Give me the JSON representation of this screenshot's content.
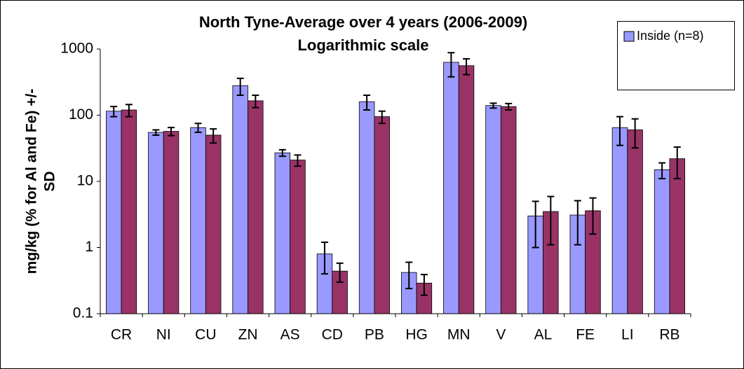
{
  "chart_data": {
    "type": "bar",
    "title": "North Tyne-Average over 4 years (2006-2009)",
    "subtitle": "Logarithmic scale",
    "y_label": [
      "mg/kg (% for Al and Fe) +/-",
      "SD"
    ],
    "categories": [
      "CR",
      "NI",
      "CU",
      "ZN",
      "AS",
      "CD",
      "PB",
      "HG",
      "MN",
      "V",
      "AL",
      "FE",
      "LI",
      "RB"
    ],
    "series": [
      {
        "name": "Inside (n=8)",
        "color": "#9999ff",
        "values": [
          115,
          55,
          65,
          280,
          27,
          0.8,
          160,
          0.42,
          630,
          140,
          3,
          3.1,
          65,
          15
        ],
        "errors": [
          20,
          5,
          10,
          80,
          3,
          0.4,
          40,
          0.18,
          250,
          12,
          2,
          2,
          30,
          4
        ]
      },
      {
        "color": "#993366",
        "values": [
          120,
          57,
          50,
          165,
          21,
          0.44,
          95,
          0.29,
          560,
          135,
          3.5,
          3.6,
          60,
          22
        ],
        "errors": [
          25,
          8,
          12,
          35,
          4,
          0.14,
          20,
          0.1,
          150,
          15,
          2.4,
          2,
          28,
          11
        ]
      }
    ],
    "ylim": [
      0.1,
      1000
    ],
    "yticks": [
      0.1,
      1,
      10,
      100,
      1000
    ],
    "log_scale": true,
    "legend": "top-right"
  }
}
